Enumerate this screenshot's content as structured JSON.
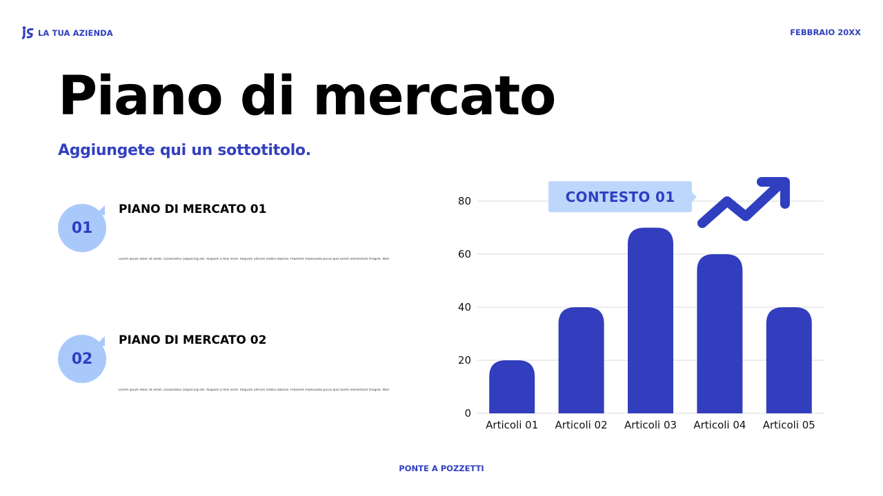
{
  "header": {
    "company": "LA TUA AZIENDA",
    "date": "FEBBRAIO 20XX",
    "logo_icon": "company-logo-icon"
  },
  "title": "Piano di mercato",
  "subtitle": "Aggiungete qui un sottotitolo.",
  "items": [
    {
      "number": "01",
      "heading": "PIANO DI MERCATO 01",
      "body": "Lorem ipsum dolor sit amet, consectetur adipiscing elit. Aliquam a felis enim. Aliquam ultrices mattis lobortis. Praesent malesuada purus quis lorem elementum fringilla. Morbi at placerat eros. Duis vulputate."
    },
    {
      "number": "02",
      "heading": "PIANO DI MERCATO 02",
      "body": "Lorem ipsum dolor sit amet, consectetur adipiscing elit. Aliquam a felis enim. Aliquam ultrices mattis lobortis. Praesent malesuada purus quis lorem elementum fringilla. Morbi at placerat eros. Duis vulputate."
    }
  ],
  "callout": "CONTESTO 01",
  "trend_icon": "trend-up-arrow-icon",
  "footer": "PONTE A POZZETTI",
  "colors": {
    "accent": "#2f3fc0",
    "bar": "#323ebd",
    "bubble": "#a9c9fa",
    "callout_bg": "#bcd7fb",
    "grid": "#d9d9d9"
  },
  "chart_data": {
    "type": "bar",
    "categories": [
      "Articoli 01",
      "Articoli 02",
      "Articoli 03",
      "Articoli 04",
      "Articoli 05"
    ],
    "values": [
      20,
      40,
      70,
      60,
      40
    ],
    "yticks": [
      0,
      20,
      40,
      60,
      80
    ],
    "ylim": [
      0,
      80
    ],
    "grid": true,
    "legend": "none",
    "title": "",
    "xlabel": "",
    "ylabel": ""
  }
}
